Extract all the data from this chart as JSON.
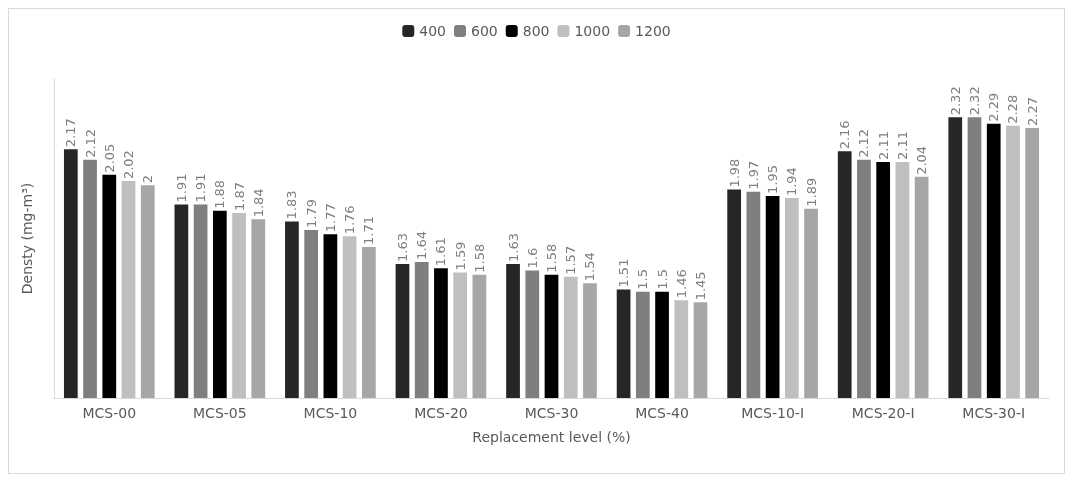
{
  "chart_data": {
    "type": "bar",
    "xlabel": "Replacement level (%)",
    "ylabel": "Densty (mg-m³)",
    "categories": [
      "MCS-00",
      "MCS-05",
      "MCS-10",
      "MCS-20",
      "MCS-30",
      "MCS-40",
      "MCS-10-I",
      "MCS-20-I",
      "MCS-30-I"
    ],
    "series": [
      {
        "name": "400",
        "color": "#262626",
        "values": [
          2.17,
          1.91,
          1.83,
          1.63,
          1.63,
          1.51,
          1.98,
          2.16,
          2.32
        ]
      },
      {
        "name": "600",
        "color": "#7f7f7f",
        "values": [
          2.12,
          1.91,
          1.79,
          1.64,
          1.6,
          1.5,
          1.97,
          2.12,
          2.32
        ]
      },
      {
        "name": "800",
        "color": "#000000",
        "values": [
          2.05,
          1.88,
          1.77,
          1.61,
          1.58,
          1.5,
          1.95,
          2.11,
          2.29
        ]
      },
      {
        "name": "1000",
        "color": "#bfbfbf",
        "values": [
          2.02,
          1.87,
          1.76,
          1.59,
          1.57,
          1.46,
          1.94,
          2.11,
          2.28
        ]
      },
      {
        "name": "1200",
        "color": "#a6a6a6",
        "values": [
          2,
          1.84,
          1.71,
          1.58,
          1.54,
          1.45,
          1.89,
          2.04,
          2.27
        ]
      }
    ],
    "ylim": [
      1,
      2.5
    ],
    "tick_labels": "x",
    "data_labels": true,
    "grid": false,
    "legend": "top"
  }
}
